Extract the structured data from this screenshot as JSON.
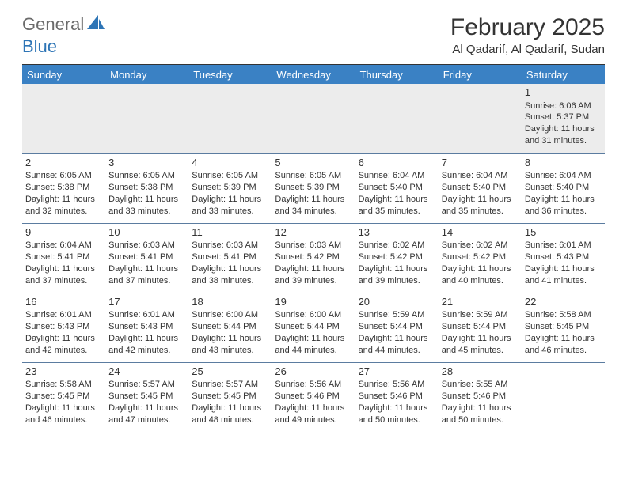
{
  "logo": {
    "general": "General",
    "blue": "Blue"
  },
  "title": "February 2025",
  "location": "Al Qadarif, Al Qadarif, Sudan",
  "colors": {
    "header_bg": "#3a81c4",
    "header_text": "#ffffff",
    "logo_gray": "#6b6b6b",
    "logo_blue": "#2e75b6",
    "row_border": "#5b7ca0",
    "first_row_bg": "#ececec",
    "text": "#333333"
  },
  "days": [
    "Sunday",
    "Monday",
    "Tuesday",
    "Wednesday",
    "Thursday",
    "Friday",
    "Saturday"
  ],
  "weeks": [
    [
      null,
      null,
      null,
      null,
      null,
      null,
      {
        "n": "1",
        "sr": "6:06 AM",
        "ss": "5:37 PM",
        "dl": "11 hours and 31 minutes."
      }
    ],
    [
      {
        "n": "2",
        "sr": "6:05 AM",
        "ss": "5:38 PM",
        "dl": "11 hours and 32 minutes."
      },
      {
        "n": "3",
        "sr": "6:05 AM",
        "ss": "5:38 PM",
        "dl": "11 hours and 33 minutes."
      },
      {
        "n": "4",
        "sr": "6:05 AM",
        "ss": "5:39 PM",
        "dl": "11 hours and 33 minutes."
      },
      {
        "n": "5",
        "sr": "6:05 AM",
        "ss": "5:39 PM",
        "dl": "11 hours and 34 minutes."
      },
      {
        "n": "6",
        "sr": "6:04 AM",
        "ss": "5:40 PM",
        "dl": "11 hours and 35 minutes."
      },
      {
        "n": "7",
        "sr": "6:04 AM",
        "ss": "5:40 PM",
        "dl": "11 hours and 35 minutes."
      },
      {
        "n": "8",
        "sr": "6:04 AM",
        "ss": "5:40 PM",
        "dl": "11 hours and 36 minutes."
      }
    ],
    [
      {
        "n": "9",
        "sr": "6:04 AM",
        "ss": "5:41 PM",
        "dl": "11 hours and 37 minutes."
      },
      {
        "n": "10",
        "sr": "6:03 AM",
        "ss": "5:41 PM",
        "dl": "11 hours and 37 minutes."
      },
      {
        "n": "11",
        "sr": "6:03 AM",
        "ss": "5:41 PM",
        "dl": "11 hours and 38 minutes."
      },
      {
        "n": "12",
        "sr": "6:03 AM",
        "ss": "5:42 PM",
        "dl": "11 hours and 39 minutes."
      },
      {
        "n": "13",
        "sr": "6:02 AM",
        "ss": "5:42 PM",
        "dl": "11 hours and 39 minutes."
      },
      {
        "n": "14",
        "sr": "6:02 AM",
        "ss": "5:42 PM",
        "dl": "11 hours and 40 minutes."
      },
      {
        "n": "15",
        "sr": "6:01 AM",
        "ss": "5:43 PM",
        "dl": "11 hours and 41 minutes."
      }
    ],
    [
      {
        "n": "16",
        "sr": "6:01 AM",
        "ss": "5:43 PM",
        "dl": "11 hours and 42 minutes."
      },
      {
        "n": "17",
        "sr": "6:01 AM",
        "ss": "5:43 PM",
        "dl": "11 hours and 42 minutes."
      },
      {
        "n": "18",
        "sr": "6:00 AM",
        "ss": "5:44 PM",
        "dl": "11 hours and 43 minutes."
      },
      {
        "n": "19",
        "sr": "6:00 AM",
        "ss": "5:44 PM",
        "dl": "11 hours and 44 minutes."
      },
      {
        "n": "20",
        "sr": "5:59 AM",
        "ss": "5:44 PM",
        "dl": "11 hours and 44 minutes."
      },
      {
        "n": "21",
        "sr": "5:59 AM",
        "ss": "5:44 PM",
        "dl": "11 hours and 45 minutes."
      },
      {
        "n": "22",
        "sr": "5:58 AM",
        "ss": "5:45 PM",
        "dl": "11 hours and 46 minutes."
      }
    ],
    [
      {
        "n": "23",
        "sr": "5:58 AM",
        "ss": "5:45 PM",
        "dl": "11 hours and 46 minutes."
      },
      {
        "n": "24",
        "sr": "5:57 AM",
        "ss": "5:45 PM",
        "dl": "11 hours and 47 minutes."
      },
      {
        "n": "25",
        "sr": "5:57 AM",
        "ss": "5:45 PM",
        "dl": "11 hours and 48 minutes."
      },
      {
        "n": "26",
        "sr": "5:56 AM",
        "ss": "5:46 PM",
        "dl": "11 hours and 49 minutes."
      },
      {
        "n": "27",
        "sr": "5:56 AM",
        "ss": "5:46 PM",
        "dl": "11 hours and 50 minutes."
      },
      {
        "n": "28",
        "sr": "5:55 AM",
        "ss": "5:46 PM",
        "dl": "11 hours and 50 minutes."
      },
      null
    ]
  ],
  "labels": {
    "sunrise": "Sunrise:",
    "sunset": "Sunset:",
    "daylight": "Daylight:"
  }
}
